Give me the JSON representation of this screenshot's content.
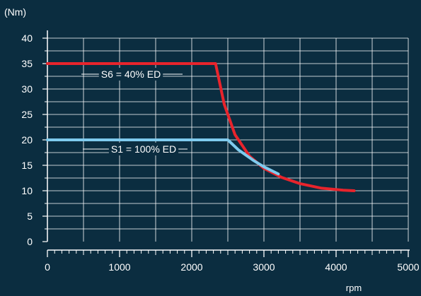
{
  "colors": {
    "background": "#0b2d40",
    "axis": "#ffffff",
    "grid": "#ffffff",
    "s6": "#e8242c",
    "s1": "#7fcbee"
  },
  "chart_data": {
    "type": "line",
    "ylabel": "(Nm)",
    "xlabel": "rpm",
    "xlim": [
      0,
      5000
    ],
    "ylim": [
      0,
      40
    ],
    "x_ticks": [
      "0",
      "1000",
      "2000",
      "3000",
      "4000",
      "5000"
    ],
    "y_ticks": [
      "0",
      "5",
      "10",
      "15",
      "20",
      "25",
      "30",
      "35",
      "40"
    ],
    "grid": true,
    "series": [
      {
        "name": "S6 = 40% ED",
        "color": "#e8242c",
        "points": [
          [
            0,
            35
          ],
          [
            2330,
            35
          ],
          [
            2450,
            27
          ],
          [
            2600,
            21
          ],
          [
            2800,
            16.8
          ],
          [
            3000,
            14.4
          ],
          [
            3250,
            12.6
          ],
          [
            3500,
            11.4
          ],
          [
            3800,
            10.5
          ],
          [
            4100,
            10.1
          ],
          [
            4250,
            10
          ]
        ]
      },
      {
        "name": "S1 = 100% ED",
        "color": "#7fcbee",
        "points": [
          [
            0,
            20
          ],
          [
            2500,
            20
          ],
          [
            2650,
            18
          ],
          [
            2850,
            16
          ],
          [
            3000,
            14.7
          ],
          [
            3200,
            13.3
          ]
        ]
      }
    ],
    "annotations": [
      {
        "text": "S6 = 40% ED",
        "series": 0
      },
      {
        "text": "S1 = 100% ED",
        "series": 1
      }
    ]
  }
}
